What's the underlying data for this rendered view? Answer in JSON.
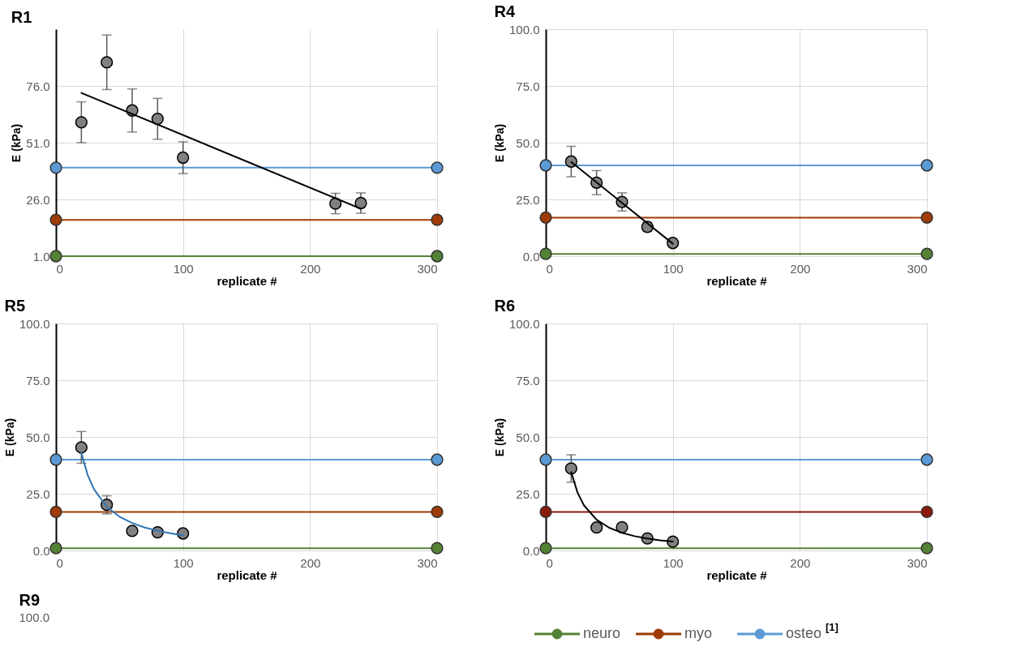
{
  "chart_data": [
    {
      "type": "scatter",
      "title": "R1",
      "xlabel": "replicate #",
      "ylabel": "E (kPa)",
      "xlim": [
        0,
        300
      ],
      "xticks": [
        0,
        100,
        200,
        300
      ],
      "ylim": [
        1,
        101
      ],
      "yticks": [
        {
          "value": 1,
          "label": "1.0"
        },
        {
          "value": 26,
          "label": "26.0"
        },
        {
          "value": 51,
          "label": "51.0"
        },
        {
          "value": 76,
          "label": "76.0"
        }
      ],
      "grid": true,
      "legend": "bottom right",
      "series": [
        {
          "name": "neuro",
          "type": "line",
          "color": "#548235",
          "marker": "circle",
          "x": [
            0,
            300
          ],
          "values": [
            1,
            1
          ]
        },
        {
          "name": "myo",
          "type": "line",
          "color": "#9e3b06",
          "marker": "circle",
          "x": [
            0,
            300
          ],
          "values": [
            17,
            17
          ]
        },
        {
          "name": "osteo$^{[1]}$",
          "type": "line",
          "color": "#5b9bd5",
          "marker": "circle",
          "x": [
            0,
            300
          ],
          "values": [
            40,
            40
          ]
        },
        {
          "color": "#808080",
          "marker": "circle",
          "x": [
            20,
            40,
            60,
            80,
            100,
            220,
            240
          ],
          "values": [
            60,
            86.4,
            65.2,
            61.5,
            44.4,
            24.2,
            24.4
          ],
          "errors": [
            9,
            12,
            9.5,
            9,
            7,
            4.5,
            4.5
          ]
        },
        {
          "type": "line",
          "color": "#000000",
          "marker": "none",
          "x": [
            20,
            240
          ],
          "values": [
            72.9,
            21.9
          ]
        }
      ]
    },
    {
      "type": "scatter",
      "title": "R4",
      "xlabel": "replicate #",
      "ylabel": "E (kPa)",
      "xlim": [
        0,
        300
      ],
      "xticks": [
        0,
        100,
        200,
        300
      ],
      "ylim": [
        0,
        100
      ],
      "yticks": [
        {
          "value": 0,
          "label": "0.0"
        },
        {
          "value": 25,
          "label": "25.0"
        },
        {
          "value": 50,
          "label": "50.0"
        },
        {
          "value": 75,
          "label": "75.0"
        },
        {
          "value": 100,
          "label": "100.0"
        }
      ],
      "grid": true,
      "series": [
        {
          "type": "line",
          "color": "#548235",
          "marker": "circle",
          "x": [
            0,
            300
          ],
          "values": [
            1,
            1
          ]
        },
        {
          "type": "line",
          "color": "#9e3b06",
          "marker": "circle",
          "x": [
            0,
            300
          ],
          "values": [
            17,
            17
          ]
        },
        {
          "type": "line",
          "color": "#5b9bd5",
          "marker": "circle",
          "x": [
            0,
            300
          ],
          "values": [
            40,
            40
          ]
        },
        {
          "color": "#808080",
          "marker": "circle",
          "x": [
            20,
            40,
            60,
            80,
            100
          ],
          "values": [
            41.7,
            32.4,
            23.9,
            12.9,
            5.8
          ],
          "errors": [
            6.7,
            5.3,
            4,
            2,
            null
          ]
        },
        {
          "type": "line",
          "color": "#000000",
          "marker": "none",
          "x": [
            20,
            100
          ],
          "values": [
            41.5,
            5.5
          ]
        }
      ]
    },
    {
      "type": "scatter",
      "title": "R5",
      "xlabel": "replicate #",
      "ylabel": "E (kPa)",
      "xlim": [
        0,
        300
      ],
      "xticks": [
        0,
        100,
        200,
        300
      ],
      "ylim": [
        0,
        100
      ],
      "yticks": [
        {
          "value": 0,
          "label": "0.0"
        },
        {
          "value": 25,
          "label": "25.0"
        },
        {
          "value": 50,
          "label": "50.0"
        },
        {
          "value": 75,
          "label": "75.0"
        },
        {
          "value": 100,
          "label": "100.0"
        }
      ],
      "grid": true,
      "series": [
        {
          "type": "line",
          "color": "#548235",
          "marker": "circle",
          "x": [
            0,
            300
          ],
          "values": [
            1,
            1
          ]
        },
        {
          "type": "line",
          "color": "#9e3b06",
          "marker": "circle",
          "x": [
            0,
            300
          ],
          "values": [
            17,
            17
          ]
        },
        {
          "type": "line",
          "color": "#5b9bd5",
          "marker": "circle",
          "x": [
            0,
            300
          ],
          "values": [
            40,
            40
          ]
        },
        {
          "color": "#808080",
          "marker": "circle",
          "x": [
            20,
            40,
            60,
            80,
            100
          ],
          "values": [
            45.4,
            20.1,
            8.6,
            8.0,
            7.5
          ],
          "errors": [
            7,
            4,
            null,
            null,
            null
          ]
        },
        {
          "type": "line",
          "color": "#2e75b6",
          "marker": "none",
          "x": [
            20,
            25,
            30,
            40,
            50,
            60,
            70,
            80,
            90,
            100
          ],
          "values": [
            42.9,
            33.2,
            26.9,
            19.2,
            14.9,
            12.1,
            10.1,
            8.7,
            7.6,
            6.7
          ]
        }
      ]
    },
    {
      "type": "scatter",
      "title": "R6",
      "xlabel": "replicate #",
      "ylabel": "E (kPa)",
      "xlim": [
        0,
        300
      ],
      "xticks": [
        0,
        100,
        200,
        300
      ],
      "ylim": [
        0,
        100
      ],
      "yticks": [
        {
          "value": 0,
          "label": "0.0"
        },
        {
          "value": 25,
          "label": "25.0"
        },
        {
          "value": 50,
          "label": "50.0"
        },
        {
          "value": 75,
          "label": "75.0"
        },
        {
          "value": 100,
          "label": "100.0"
        }
      ],
      "grid": true,
      "series": [
        {
          "type": "line",
          "color": "#548235",
          "marker": "circle",
          "x": [
            0,
            300
          ],
          "values": [
            1,
            1
          ]
        },
        {
          "type": "line",
          "color": "#8b1a0a",
          "marker": "circle",
          "x": [
            0,
            300
          ],
          "values": [
            17,
            17
          ]
        },
        {
          "type": "line",
          "color": "#5b9bd5",
          "marker": "circle",
          "x": [
            0,
            300
          ],
          "values": [
            40,
            40
          ]
        },
        {
          "color": "#808080",
          "marker": "circle",
          "x": [
            20,
            40,
            60,
            80,
            100
          ],
          "values": [
            36.1,
            10.1,
            10.2,
            5.3,
            3.9
          ],
          "errors": [
            6,
            null,
            null,
            null,
            null
          ]
        },
        {
          "type": "line",
          "color": "#000000",
          "marker": "none",
          "x": [
            20,
            25,
            30,
            40,
            50,
            60,
            70,
            80,
            90,
            100
          ],
          "values": [
            34.5,
            25.5,
            19.9,
            13.5,
            10.0,
            7.8,
            6.3,
            5.3,
            4.5,
            3.9
          ]
        }
      ]
    },
    {
      "type": "other",
      "title": "R9",
      "annotations": [
        "100.0"
      ]
    }
  ]
}
